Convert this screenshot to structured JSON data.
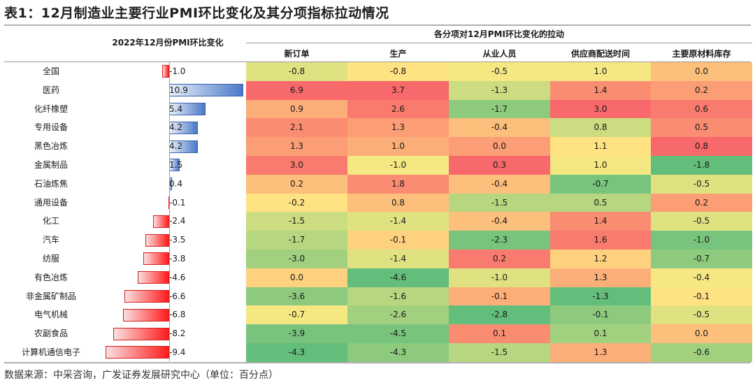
{
  "title": "表1：12月制造业主要行业PMI环比变化及其分项指标拉动情况",
  "left_header": "2022年12月份PMI环比变化",
  "group_header": "各分项对12月PMI环比变化的拉动",
  "columns": [
    "新订单",
    "生产",
    "从业人员",
    "供应商配送时间",
    "主要原材料库存"
  ],
  "rows": [
    {
      "name": "全国",
      "pmi": "-1.0",
      "vals": [
        "-0.8",
        "-0.8",
        "-0.5",
        "1.0",
        "0.0"
      ]
    },
    {
      "name": "医药",
      "pmi": "10.9",
      "vals": [
        "6.9",
        "3.7",
        "-1.3",
        "1.4",
        "0.2"
      ]
    },
    {
      "name": "化纤橡塑",
      "pmi": "5.4",
      "vals": [
        "0.9",
        "2.6",
        "-1.7",
        "3.0",
        "0.6"
      ]
    },
    {
      "name": "专用设备",
      "pmi": "4.2",
      "vals": [
        "2.1",
        "1.3",
        "-0.4",
        "0.8",
        "0.5"
      ]
    },
    {
      "name": "黑色冶炼",
      "pmi": "4.2",
      "vals": [
        "1.3",
        "1.0",
        "0.0",
        "1.1",
        "0.8"
      ]
    },
    {
      "name": "金属制品",
      "pmi": "1.5",
      "vals": [
        "3.0",
        "-1.0",
        "0.3",
        "1.0",
        "-1.8"
      ]
    },
    {
      "name": "石油炼焦",
      "pmi": "0.4",
      "vals": [
        "0.2",
        "1.8",
        "-0.4",
        "-0.7",
        "-0.5"
      ]
    },
    {
      "name": "通用设备",
      "pmi": "-0.1",
      "vals": [
        "-0.2",
        "0.8",
        "-1.5",
        "0.5",
        "0.2"
      ]
    },
    {
      "name": "化工",
      "pmi": "-2.4",
      "vals": [
        "-1.5",
        "-1.4",
        "-0.4",
        "1.4",
        "-0.5"
      ]
    },
    {
      "name": "汽车",
      "pmi": "-3.5",
      "vals": [
        "-1.7",
        "-0.1",
        "-2.3",
        "1.6",
        "-1.0"
      ]
    },
    {
      "name": "纺服",
      "pmi": "-3.8",
      "vals": [
        "-3.0",
        "-1.4",
        "0.2",
        "1.2",
        "-0.7"
      ]
    },
    {
      "name": "有色冶炼",
      "pmi": "-4.6",
      "vals": [
        "0.0",
        "-4.6",
        "-1.0",
        "1.3",
        "-0.4"
      ]
    },
    {
      "name": "非金属矿制品",
      "pmi": "-6.6",
      "vals": [
        "-3.6",
        "-1.6",
        "-0.1",
        "-1.3",
        "-0.1"
      ]
    },
    {
      "name": "电气机械",
      "pmi": "-6.8",
      "vals": [
        "-0.7",
        "-2.6",
        "-2.8",
        "-0.1",
        "-0.5"
      ]
    },
    {
      "name": "农副食品",
      "pmi": "-8.2",
      "vals": [
        "-3.9",
        "-4.5",
        "0.1",
        "0.1",
        "0.0"
      ]
    },
    {
      "name": "计算机通信电子",
      "pmi": "-9.4",
      "vals": [
        "-4.3",
        "-4.3",
        "-1.5",
        "1.3",
        "-0.6"
      ]
    }
  ],
  "source": "数据来源：中采咨询，广发证券发展研究中心（单位：百分点）",
  "colors": {
    "bar_positive": "#4a78c8",
    "bar_negative": "#ff1a1a",
    "heat_low": "#63be7b",
    "heat_mid": "#ffeb84",
    "heat_high": "#f8696b"
  }
}
